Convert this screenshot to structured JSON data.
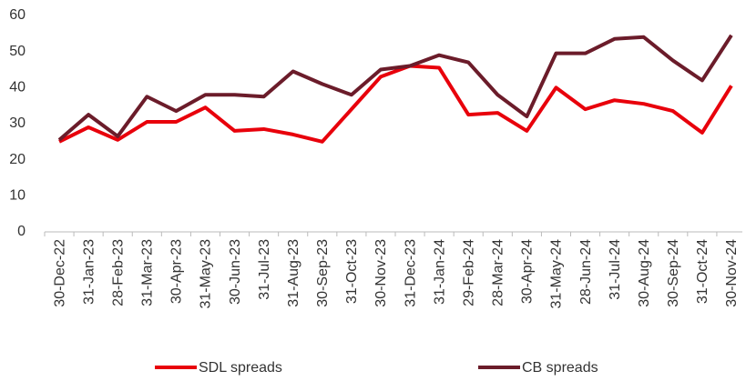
{
  "chart_data": {
    "type": "line",
    "categories": [
      "30-Dec-22",
      "31-Jan-23",
      "28-Feb-23",
      "31-Mar-23",
      "30-Apr-23",
      "31-May-23",
      "30-Jun-23",
      "31-Jul-23",
      "31-Aug-23",
      "30-Sep-23",
      "31-Oct-23",
      "30-Nov-23",
      "31-Dec-23",
      "31-Jan-24",
      "29-Feb-24",
      "28-Mar-24",
      "30-Apr-24",
      "31-May-24",
      "28-Jun-24",
      "31-Jul-24",
      "30-Aug-24",
      "30-Sep-24",
      "31-Oct-24",
      "30-Nov-24"
    ],
    "series": [
      {
        "name": "SDL spreads",
        "color": "#e8000b",
        "values": [
          25,
          29,
          25.5,
          30.5,
          30.5,
          34.5,
          28,
          28.5,
          27,
          25,
          34,
          43,
          46,
          45.5,
          32.5,
          33,
          28,
          40,
          34,
          36.5,
          35.5,
          33.5,
          27.5,
          40.5
        ]
      },
      {
        "name": "CB spreads",
        "color": "#6b1c2a",
        "values": [
          25.5,
          32.5,
          26.5,
          37.5,
          33.5,
          38,
          38,
          37.5,
          44.5,
          41,
          38,
          45,
          46,
          49,
          47,
          38,
          32,
          49.5,
          49.5,
          53.5,
          54,
          47.5,
          42,
          54.5
        ]
      }
    ],
    "ylim": [
      0,
      60
    ],
    "yticks": [
      0,
      10,
      20,
      30,
      40,
      50,
      60
    ],
    "grid": false,
    "legend": "bottom"
  }
}
